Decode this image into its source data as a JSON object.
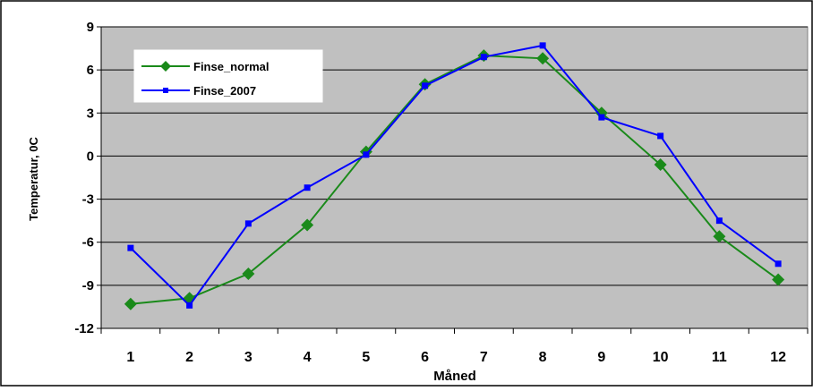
{
  "chart_data": {
    "type": "line",
    "title": "",
    "xlabel": "Måned",
    "ylabel": "Temperatur, 0C",
    "categories": [
      "1",
      "2",
      "3",
      "4",
      "5",
      "6",
      "7",
      "8",
      "9",
      "10",
      "11",
      "12"
    ],
    "ylim": [
      -12,
      9
    ],
    "yticks": [
      "9",
      "6",
      "3",
      "0",
      "-3",
      "-6",
      "-9",
      "-12"
    ],
    "ytick_values": [
      9,
      6,
      3,
      0,
      -3,
      -6,
      -9,
      -12
    ],
    "grid": true,
    "legend_position": "top-left",
    "series": [
      {
        "name": "Finse_normal",
        "color": "#1a8a1a",
        "marker": "diamond",
        "values": [
          -10.3,
          -9.9,
          -8.2,
          -4.8,
          0.3,
          5.0,
          7.0,
          6.8,
          3.0,
          -0.6,
          -5.6,
          -8.6
        ]
      },
      {
        "name": "Finse_2007",
        "color": "#0000ff",
        "marker": "square",
        "values": [
          -6.4,
          -10.4,
          -4.7,
          -2.2,
          0.1,
          4.9,
          6.9,
          7.7,
          2.7,
          1.4,
          -4.5,
          -7.5
        ]
      }
    ],
    "colors": {
      "plot_background": "#c0c0c0",
      "gridline": "#000000"
    }
  }
}
